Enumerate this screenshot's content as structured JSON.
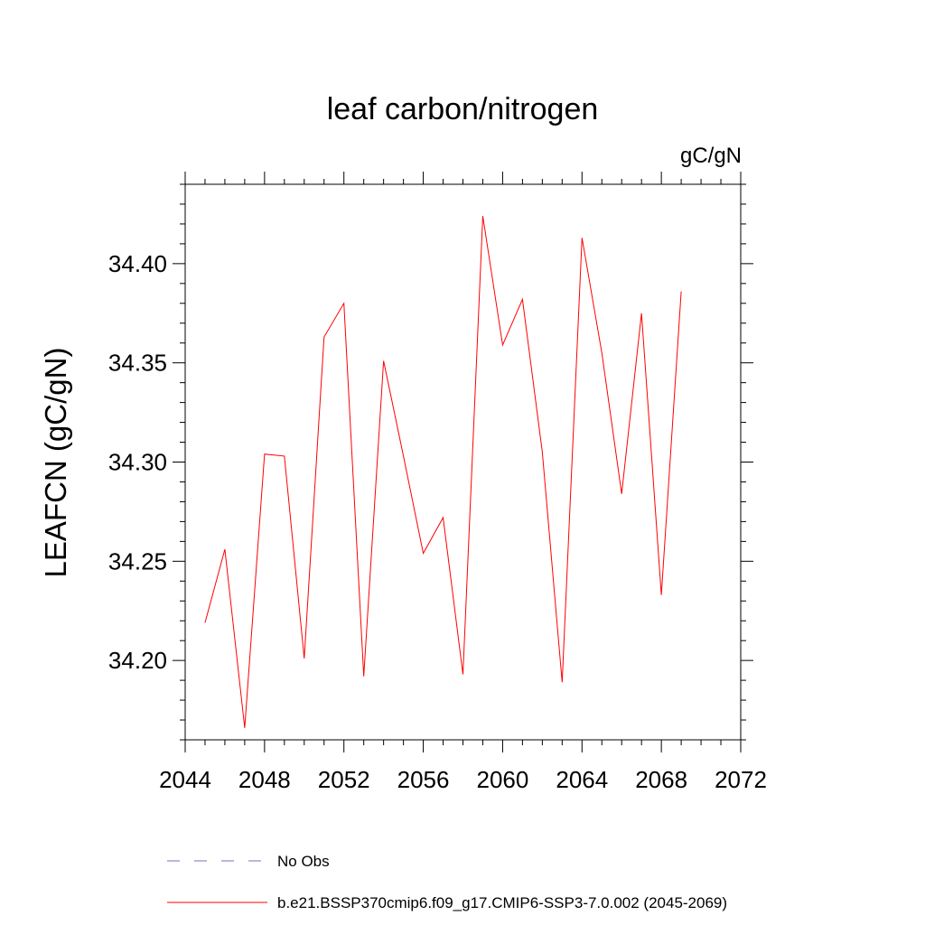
{
  "chart_data": {
    "type": "line",
    "title": "leaf carbon/nitrogen",
    "units": "gC/gN",
    "ylabel": "LEAFCN  (gC/gN)",
    "xlabel": "",
    "xlim": [
      2044,
      2072
    ],
    "ylim": [
      34.16,
      34.44
    ],
    "x_ticks": [
      2044,
      2048,
      2052,
      2056,
      2060,
      2064,
      2068,
      2072
    ],
    "x_tick_labels": [
      "2044",
      "2048",
      "2052",
      "2056",
      "2060",
      "2064",
      "2068",
      "2072"
    ],
    "y_ticks": [
      34.2,
      34.25,
      34.3,
      34.35,
      34.4
    ],
    "y_tick_labels": [
      "34.20",
      "34.25",
      "34.30",
      "34.35",
      "34.40"
    ],
    "grid": false,
    "legend_position": "bottom",
    "series": [
      {
        "name": "b.e21.BSSP370cmip6.f09_g17.CMIP6-SSP3-7.0.002 (2045-2069)",
        "color": "#ff0000",
        "dash": "solid",
        "x": [
          2045,
          2046,
          2047,
          2048,
          2049,
          2050,
          2051,
          2052,
          2053,
          2054,
          2055,
          2056,
          2057,
          2058,
          2059,
          2060,
          2061,
          2062,
          2063,
          2064,
          2065,
          2066,
          2067,
          2068,
          2069
        ],
        "y": [
          34.219,
          34.256,
          34.166,
          34.304,
          34.303,
          34.201,
          34.363,
          34.38,
          34.192,
          34.351,
          34.303,
          34.254,
          34.272,
          34.193,
          34.424,
          34.359,
          34.382,
          34.305,
          34.189,
          34.413,
          34.355,
          34.284,
          34.375,
          34.233,
          34.386
        ]
      }
    ],
    "legend": [
      {
        "label": "No Obs",
        "color": "#7a6fc0",
        "dash": "dashed"
      },
      {
        "label": "b.e21.BSSP370cmip6.f09_g17.CMIP6-SSP3-7.0.002 (2045-2069)",
        "color": "#ff0000",
        "dash": "solid"
      }
    ]
  }
}
